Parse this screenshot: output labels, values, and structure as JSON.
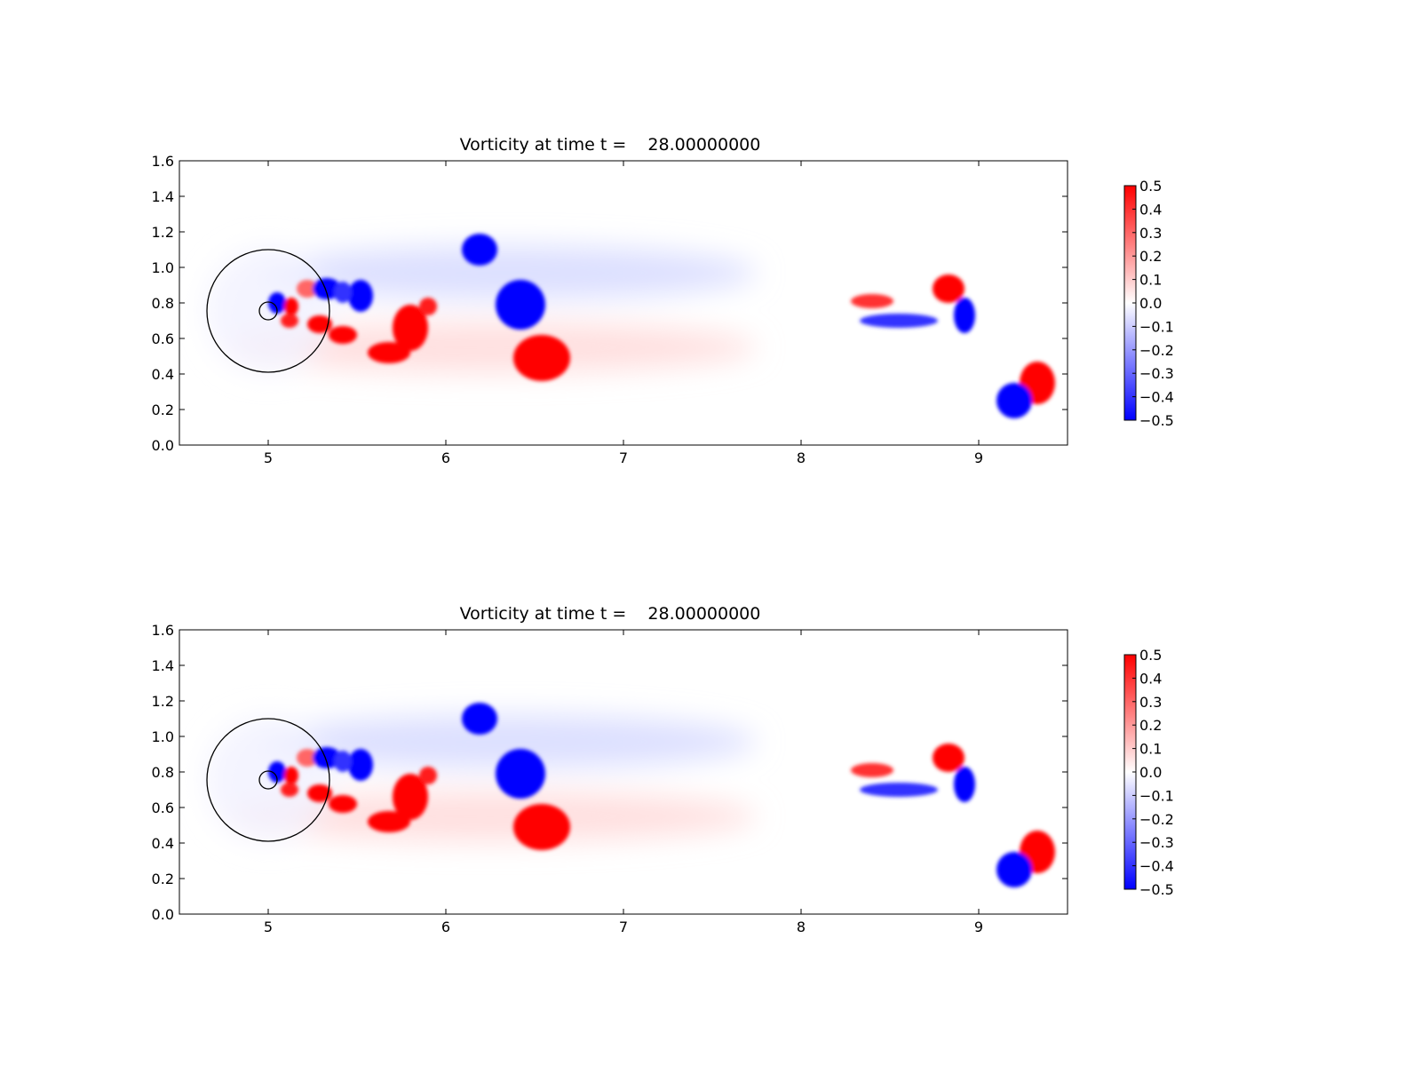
{
  "chart_data": [
    {
      "type": "heatmap",
      "title": "Vorticity at time t =    28.00000000",
      "xlabel": "",
      "ylabel": "",
      "xlim": [
        4.5,
        9.5
      ],
      "ylim": [
        0.0,
        1.6
      ],
      "x_ticks": [
        "5",
        "6",
        "7",
        "8",
        "9"
      ],
      "x_tick_values": [
        5,
        6,
        7,
        8,
        9
      ],
      "y_ticks": [
        "0.0",
        "0.2",
        "0.4",
        "0.6",
        "0.8",
        "1.0",
        "1.2",
        "1.4",
        "1.6"
      ],
      "y_tick_values": [
        0.0,
        0.2,
        0.4,
        0.6,
        0.8,
        1.0,
        1.2,
        1.4,
        1.6
      ],
      "colormap": "bwr",
      "colors": {
        "negative": "#0000ff",
        "zero": "#ffffff",
        "positive": "#ff0000"
      },
      "colorbar": {
        "range": [
          -0.5,
          0.5
        ],
        "ticks": [
          "0.5",
          "0.4",
          "0.3",
          "0.2",
          "0.1",
          "0.0",
          "−0.1",
          "−0.2",
          "−0.3",
          "−0.4",
          "−0.5"
        ],
        "tick_values": [
          0.5,
          0.4,
          0.3,
          0.2,
          0.1,
          0.0,
          -0.1,
          -0.2,
          -0.3,
          -0.4,
          -0.5
        ]
      },
      "circles": [
        {
          "cx": 5.0,
          "cy": 0.755,
          "r": 0.345
        },
        {
          "cx": 5.0,
          "cy": 0.755,
          "r": 0.05
        }
      ],
      "vortices": [
        {
          "x": 5.05,
          "y": 0.8,
          "rx": 0.05,
          "ry": 0.06,
          "value": -0.5
        },
        {
          "x": 5.13,
          "y": 0.78,
          "rx": 0.04,
          "ry": 0.05,
          "value": 0.5
        },
        {
          "x": 5.12,
          "y": 0.7,
          "rx": 0.05,
          "ry": 0.04,
          "value": 0.45
        },
        {
          "x": 5.22,
          "y": 0.88,
          "rx": 0.06,
          "ry": 0.05,
          "value": 0.3
        },
        {
          "x": 5.33,
          "y": 0.88,
          "rx": 0.08,
          "ry": 0.06,
          "value": -0.5
        },
        {
          "x": 5.29,
          "y": 0.68,
          "rx": 0.07,
          "ry": 0.05,
          "value": 0.5
        },
        {
          "x": 5.42,
          "y": 0.62,
          "rx": 0.08,
          "ry": 0.05,
          "value": 0.5
        },
        {
          "x": 5.52,
          "y": 0.84,
          "rx": 0.07,
          "ry": 0.09,
          "value": -0.5
        },
        {
          "x": 5.42,
          "y": 0.86,
          "rx": 0.05,
          "ry": 0.06,
          "value": -0.4
        },
        {
          "x": 5.68,
          "y": 0.52,
          "rx": 0.12,
          "ry": 0.06,
          "value": 0.5
        },
        {
          "x": 5.8,
          "y": 0.66,
          "rx": 0.1,
          "ry": 0.13,
          "value": 0.5
        },
        {
          "x": 5.9,
          "y": 0.78,
          "rx": 0.05,
          "ry": 0.05,
          "value": 0.45
        },
        {
          "x": 6.19,
          "y": 1.1,
          "rx": 0.1,
          "ry": 0.09,
          "value": -0.5
        },
        {
          "x": 6.42,
          "y": 0.79,
          "rx": 0.14,
          "ry": 0.14,
          "value": -0.5
        },
        {
          "x": 6.54,
          "y": 0.49,
          "rx": 0.16,
          "ry": 0.13,
          "value": 0.5
        },
        {
          "x": 8.83,
          "y": 0.88,
          "rx": 0.09,
          "ry": 0.08,
          "value": 0.5
        },
        {
          "x": 8.92,
          "y": 0.73,
          "rx": 0.06,
          "ry": 0.1,
          "value": -0.5
        },
        {
          "x": 9.33,
          "y": 0.35,
          "rx": 0.1,
          "ry": 0.12,
          "value": 0.5
        },
        {
          "x": 9.2,
          "y": 0.25,
          "rx": 0.1,
          "ry": 0.1,
          "value": -0.5
        },
        {
          "x": 8.4,
          "y": 0.81,
          "rx": 0.12,
          "ry": 0.04,
          "value": 0.4
        },
        {
          "x": 8.55,
          "y": 0.7,
          "rx": 0.22,
          "ry": 0.04,
          "value": -0.4
        }
      ]
    },
    {
      "type": "heatmap",
      "title": "Vorticity at time t =    28.00000000",
      "xlabel": "",
      "ylabel": "",
      "xlim": [
        4.5,
        9.5
      ],
      "ylim": [
        0.0,
        1.6
      ],
      "x_ticks": [
        "5",
        "6",
        "7",
        "8",
        "9"
      ],
      "x_tick_values": [
        5,
        6,
        7,
        8,
        9
      ],
      "y_ticks": [
        "0.0",
        "0.2",
        "0.4",
        "0.6",
        "0.8",
        "1.0",
        "1.2",
        "1.4",
        "1.6"
      ],
      "y_tick_values": [
        0.0,
        0.2,
        0.4,
        0.6,
        0.8,
        1.0,
        1.2,
        1.4,
        1.6
      ],
      "colormap": "bwr",
      "colors": {
        "negative": "#0000ff",
        "zero": "#ffffff",
        "positive": "#ff0000"
      },
      "colorbar": {
        "range": [
          -0.5,
          0.5
        ],
        "ticks": [
          "0.5",
          "0.4",
          "0.3",
          "0.2",
          "0.1",
          "0.0",
          "−0.1",
          "−0.2",
          "−0.3",
          "−0.4",
          "−0.5"
        ],
        "tick_values": [
          0.5,
          0.4,
          0.3,
          0.2,
          0.1,
          0.0,
          -0.1,
          -0.2,
          -0.3,
          -0.4,
          -0.5
        ]
      },
      "circles": [
        {
          "cx": 5.0,
          "cy": 0.755,
          "r": 0.345
        },
        {
          "cx": 5.0,
          "cy": 0.755,
          "r": 0.05
        }
      ],
      "vortices": [
        {
          "x": 5.05,
          "y": 0.8,
          "rx": 0.05,
          "ry": 0.06,
          "value": -0.5
        },
        {
          "x": 5.13,
          "y": 0.78,
          "rx": 0.04,
          "ry": 0.05,
          "value": 0.5
        },
        {
          "x": 5.12,
          "y": 0.7,
          "rx": 0.05,
          "ry": 0.04,
          "value": 0.45
        },
        {
          "x": 5.22,
          "y": 0.88,
          "rx": 0.06,
          "ry": 0.05,
          "value": 0.3
        },
        {
          "x": 5.33,
          "y": 0.88,
          "rx": 0.08,
          "ry": 0.06,
          "value": -0.5
        },
        {
          "x": 5.29,
          "y": 0.68,
          "rx": 0.07,
          "ry": 0.05,
          "value": 0.5
        },
        {
          "x": 5.42,
          "y": 0.62,
          "rx": 0.08,
          "ry": 0.05,
          "value": 0.5
        },
        {
          "x": 5.52,
          "y": 0.84,
          "rx": 0.07,
          "ry": 0.09,
          "value": -0.5
        },
        {
          "x": 5.42,
          "y": 0.86,
          "rx": 0.05,
          "ry": 0.06,
          "value": -0.4
        },
        {
          "x": 5.68,
          "y": 0.52,
          "rx": 0.12,
          "ry": 0.06,
          "value": 0.5
        },
        {
          "x": 5.8,
          "y": 0.66,
          "rx": 0.1,
          "ry": 0.13,
          "value": 0.5
        },
        {
          "x": 5.9,
          "y": 0.78,
          "rx": 0.05,
          "ry": 0.05,
          "value": 0.45
        },
        {
          "x": 6.19,
          "y": 1.1,
          "rx": 0.1,
          "ry": 0.09,
          "value": -0.5
        },
        {
          "x": 6.42,
          "y": 0.79,
          "rx": 0.14,
          "ry": 0.14,
          "value": -0.5
        },
        {
          "x": 6.54,
          "y": 0.49,
          "rx": 0.16,
          "ry": 0.13,
          "value": 0.5
        },
        {
          "x": 8.83,
          "y": 0.88,
          "rx": 0.09,
          "ry": 0.08,
          "value": 0.5
        },
        {
          "x": 8.92,
          "y": 0.73,
          "rx": 0.06,
          "ry": 0.1,
          "value": -0.5
        },
        {
          "x": 9.33,
          "y": 0.35,
          "rx": 0.1,
          "ry": 0.12,
          "value": 0.5
        },
        {
          "x": 9.2,
          "y": 0.25,
          "rx": 0.1,
          "ry": 0.1,
          "value": -0.5
        },
        {
          "x": 8.4,
          "y": 0.81,
          "rx": 0.12,
          "ry": 0.04,
          "value": 0.4
        },
        {
          "x": 8.55,
          "y": 0.7,
          "rx": 0.22,
          "ry": 0.04,
          "value": -0.4
        }
      ]
    }
  ]
}
